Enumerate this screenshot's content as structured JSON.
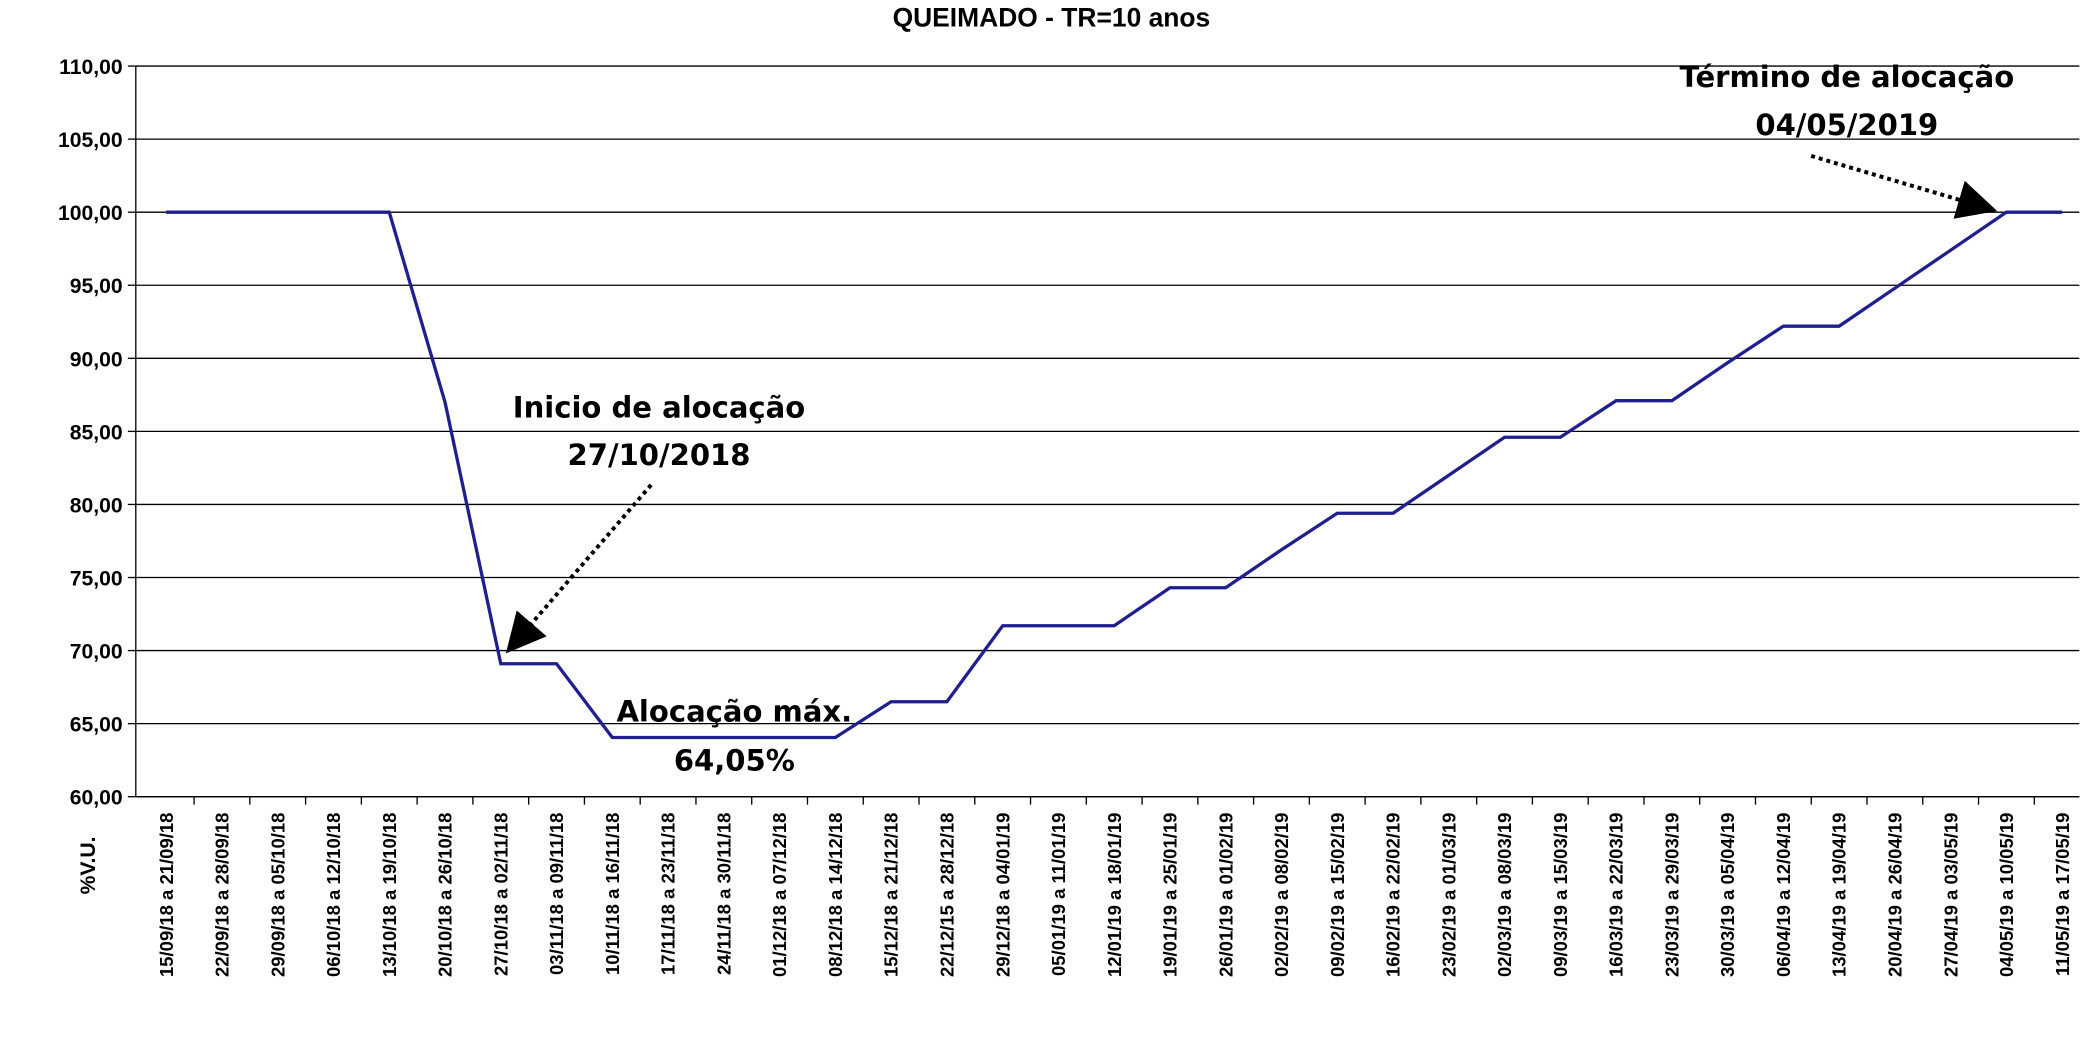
{
  "chart_data": {
    "type": "line",
    "title": "QUEIMADO - TR=10 anos",
    "y_label": "%V.U.",
    "categories": [
      "15/09/18 a 21/09/18",
      "22/09/18 a 28/09/18",
      "29/09/18 a 05/10/18",
      "06/10/18 a 12/10/18",
      "13/10/18 a 19/10/18",
      "20/10/18 a 26/10/18",
      "27/10/18 a 02/11/18",
      "03/11/18 a 09/11/18",
      "10/11/18 a 16/11/18",
      "17/11/18 a 23/11/18",
      "24/11/18 a 30/11/18",
      "01/12/18 a 07/12/18",
      "08/12/18 a 14/12/18",
      "15/12/18 a 21/12/18",
      "22/12/15 a 28/12/18",
      "29/12/18 a 04/01/19",
      "05/01/19 a 11/01/19",
      "12/01/19 a 18/01/19",
      "19/01/19 a 25/01/19",
      "26/01/19 a 01/02/19",
      "02/02/19 a 08/02/19",
      "09/02/19 a 15/02/19",
      "16/02/19 a 22/02/19",
      "23/02/19 a 01/03/19",
      "02/03/19 a 08/03/19",
      "09/03/19 a 15/03/19",
      "16/03/19 a 22/03/19",
      "23/03/19 a 29/03/19",
      "30/03/19 a 05/04/19",
      "06/04/19 a 12/04/19",
      "13/04/19 a 19/04/19",
      "20/04/19 a 26/04/19",
      "27/04/19 a 03/05/19",
      "04/05/19 a 10/05/19",
      "11/05/19 a 17/05/19"
    ],
    "series": [
      {
        "name": "%V.U.",
        "color": "#1f1f8f",
        "values": [
          100,
          100,
          100,
          100,
          100,
          87,
          69.1,
          69.1,
          64.05,
          64.05,
          64.05,
          64.05,
          64.05,
          66.5,
          66.5,
          71.7,
          71.7,
          71.7,
          74.3,
          74.3,
          76.9,
          79.4,
          79.4,
          82,
          84.6,
          84.6,
          87.1,
          87.1,
          89.7,
          92.2,
          92.2,
          94.8,
          97.4,
          100,
          100
        ]
      }
    ],
    "ylim": [
      60,
      110
    ],
    "yticks": [
      {
        "value": 60,
        "label": "60,00"
      },
      {
        "value": 65,
        "label": "65,00"
      },
      {
        "value": 70,
        "label": "70,00"
      },
      {
        "value": 75,
        "label": "75,00"
      },
      {
        "value": 80,
        "label": "80,00"
      },
      {
        "value": 85,
        "label": "85,00"
      },
      {
        "value": 90,
        "label": "90,00"
      },
      {
        "value": 95,
        "label": "95,00"
      },
      {
        "value": 100,
        "label": "100,00"
      },
      {
        "value": 105,
        "label": "105,00"
      },
      {
        "value": 110,
        "label": "110,00"
      }
    ],
    "grid": true,
    "annotations": [
      {
        "line1": "Inicio de alocação",
        "line2": "27/10/2018"
      },
      {
        "line1": "Alocação máx.",
        "line2": "64,05%"
      },
      {
        "line1": "Término de alocação",
        "line2": "04/05/2019"
      }
    ]
  }
}
